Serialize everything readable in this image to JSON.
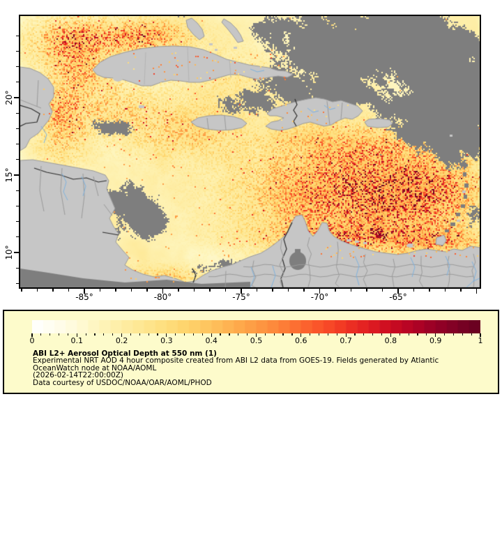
{
  "legend": {
    "background": "#fdfbcb",
    "title": "ABI L2+ Aerosol Optical Depth at 550 nm (1)",
    "lines": [
      "Experimental NRT AOD 4 hour composite created from ABI L2 data from GOES-19. Fields generated by Atlantic",
      "OceanWatch node at NOAA/AOML",
      "(2026-02-14T22:00:00Z)",
      "Data courtesy of USDOC/NOAA/OAR/AOML/PHOD"
    ],
    "colorbar_tick_labels": [
      "0",
      "0.1",
      "0.2",
      "0.3",
      "0.4",
      "0.5",
      "0.6",
      "0.7",
      "0.8",
      "0.9",
      "1"
    ]
  },
  "axes": {
    "x_tick_labels": [
      "-85°",
      "-80°",
      "-75°",
      "-70°",
      "-65°"
    ],
    "y_tick_labels": [
      "20°",
      "15°",
      "10°"
    ]
  },
  "map_colors": {
    "land": "#c6c6c6",
    "missing_data": "#7e7e7e",
    "coastline": "#9a9a9a",
    "country_border": "#2b2b2b",
    "admin_border": "#9a9a9a",
    "river": "#7fb2de",
    "frame": "#000000"
  },
  "colormap_stops": [
    [
      0.0,
      "#ffffff"
    ],
    [
      0.05,
      "#fffdee"
    ],
    [
      0.1,
      "#fffad8"
    ],
    [
      0.15,
      "#fef5bc"
    ],
    [
      0.2,
      "#feeda4"
    ],
    [
      0.25,
      "#fee690"
    ],
    [
      0.3,
      "#fede7c"
    ],
    [
      0.35,
      "#fed26a"
    ],
    [
      0.4,
      "#fec25c"
    ],
    [
      0.45,
      "#feae4e"
    ],
    [
      0.5,
      "#fd9a43"
    ],
    [
      0.55,
      "#fd8439"
    ],
    [
      0.6,
      "#fc6830"
    ],
    [
      0.65,
      "#f94f28"
    ],
    [
      0.7,
      "#ef3423"
    ],
    [
      0.75,
      "#e01d21"
    ],
    [
      0.8,
      "#cb0c21"
    ],
    [
      0.85,
      "#b30325"
    ],
    [
      0.9,
      "#960026"
    ],
    [
      0.95,
      "#7c0124"
    ],
    [
      1.0,
      "#650120"
    ]
  ]
}
